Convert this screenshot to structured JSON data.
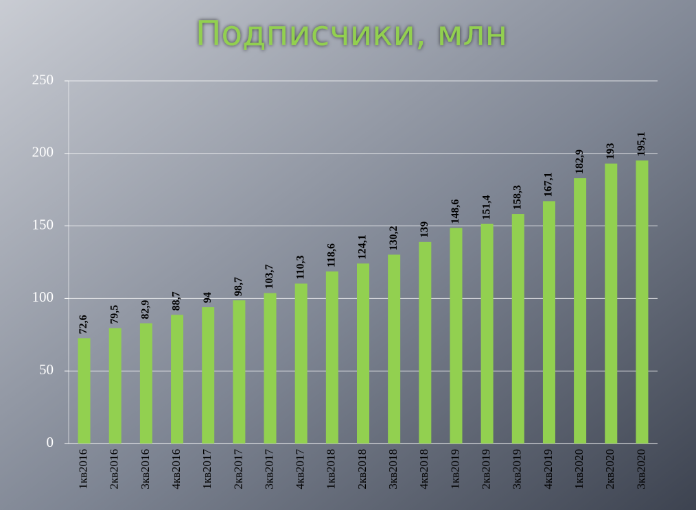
{
  "chart_data": {
    "type": "bar",
    "title": "Подписчики, млн",
    "categories": [
      "1кв2016",
      "2кв2016",
      "3кв2016",
      "4кв2016",
      "1кв2017",
      "2кв2017",
      "3кв2017",
      "4кв2017",
      "1кв2018",
      "2кв2018",
      "3кв2018",
      "4кв2018",
      "1кв2019",
      "2кв2019",
      "3кв2019",
      "4кв2019",
      "1кв2020",
      "2кв2020",
      "3кв2020"
    ],
    "values": [
      72.6,
      79.5,
      82.9,
      88.7,
      94,
      98.7,
      103.7,
      110.3,
      118.6,
      124.1,
      130.2,
      139,
      148.6,
      151.4,
      158.3,
      167.1,
      182.9,
      193,
      195.1
    ],
    "value_labels": [
      "72,6",
      "79,5",
      "82,9",
      "88,7",
      "94",
      "98,7",
      "103,7",
      "110,3",
      "118,6",
      "124,1",
      "130,2",
      "139",
      "148,6",
      "151,4",
      "158,3",
      "167,1",
      "182,9",
      "193",
      "195,1"
    ],
    "color": "#92d050",
    "ylim": [
      0,
      250
    ],
    "yticks": [
      0,
      50,
      100,
      150,
      200,
      250
    ],
    "grid": true
  }
}
